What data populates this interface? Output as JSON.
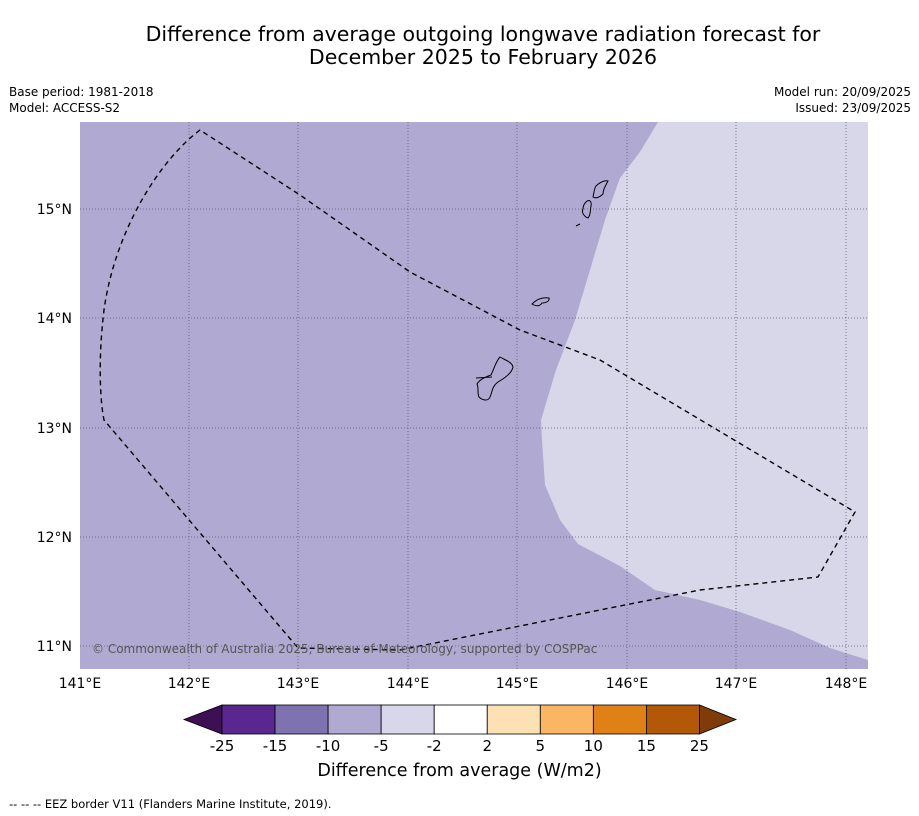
{
  "title": {
    "line1": "Difference from average outgoing longwave radiation forecast for",
    "line2": "December 2025 to February 2026"
  },
  "meta_left": {
    "base_period": "Base period: 1981-2018",
    "model": "Model: ACCESS-S2"
  },
  "meta_right": {
    "model_run": "Model run: 20/09/2025",
    "issued": "Issued: 23/09/2025"
  },
  "map": {
    "lat_labels": [
      "15°N",
      "14°N",
      "13°N",
      "12°N",
      "11°N"
    ],
    "lon_labels": [
      "141°E",
      "142°E",
      "143°E",
      "144°E",
      "145°E",
      "146°E",
      "147°E",
      "148°E"
    ],
    "copyright": "© Commonwealth of Australia 2025, Bureau of Meteorology, supported by COSPPac",
    "regions": {
      "west_category": "-10 to -5",
      "east_category": "-5 to -2"
    }
  },
  "colorbar": {
    "ticks": [
      "-25",
      "-15",
      "-10",
      "-5",
      "-2",
      "2",
      "5",
      "10",
      "15",
      "25"
    ],
    "colors": [
      "#3f0f56",
      "#5a2690",
      "#7f72b0",
      "#b0aad2",
      "#d7d7e9",
      "#ffffff",
      "#fde0b4",
      "#fbb663",
      "#e08118",
      "#b35806",
      "#7f3b08"
    ],
    "label": "Difference from average (W/m2)"
  },
  "footer": "--  --  -- EEZ border V11 (Flanders Marine Institute, 2019)."
}
